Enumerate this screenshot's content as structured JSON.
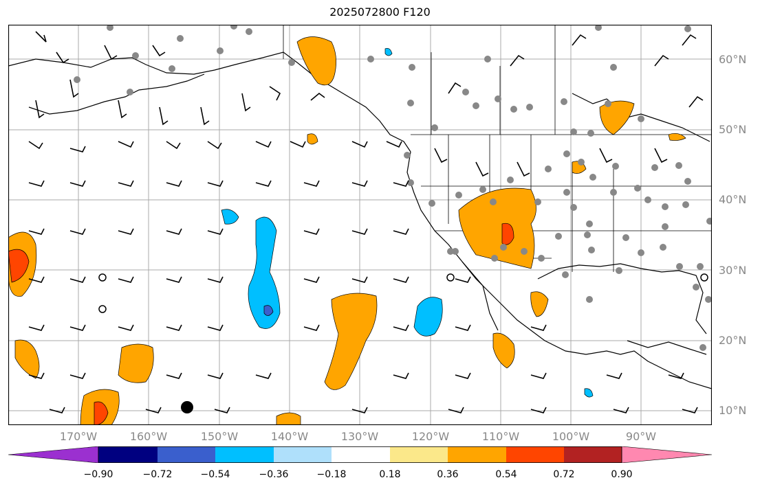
{
  "title": "2025072800 F120",
  "lat_labels": [
    "60°N",
    "50°N",
    "40°N",
    "30°N",
    "20°N",
    "10°N"
  ],
  "lon_labels": [
    "170°W",
    "160°W",
    "150°W",
    "140°W",
    "130°W",
    "120°W",
    "110°W",
    "100°W",
    "90°W"
  ],
  "colorbar": {
    "ticks": [
      "−0.90",
      "−0.72",
      "−0.54",
      "−0.36",
      "−0.18",
      "0.18",
      "0.36",
      "0.54",
      "0.72",
      "0.90"
    ],
    "colors": [
      "#9b30d0",
      "#000080",
      "#3a5fcd",
      "#00bfff",
      "#afe0fb",
      "#ffffff",
      "#fbe88a",
      "#ffa500",
      "#ff4500",
      "#b22222",
      "#ff88b0"
    ]
  },
  "map": {
    "extent_lon": [
      -180,
      -80
    ],
    "extent_lat": [
      8,
      65
    ],
    "ocean_color": "#ffffff",
    "grid": true
  }
}
